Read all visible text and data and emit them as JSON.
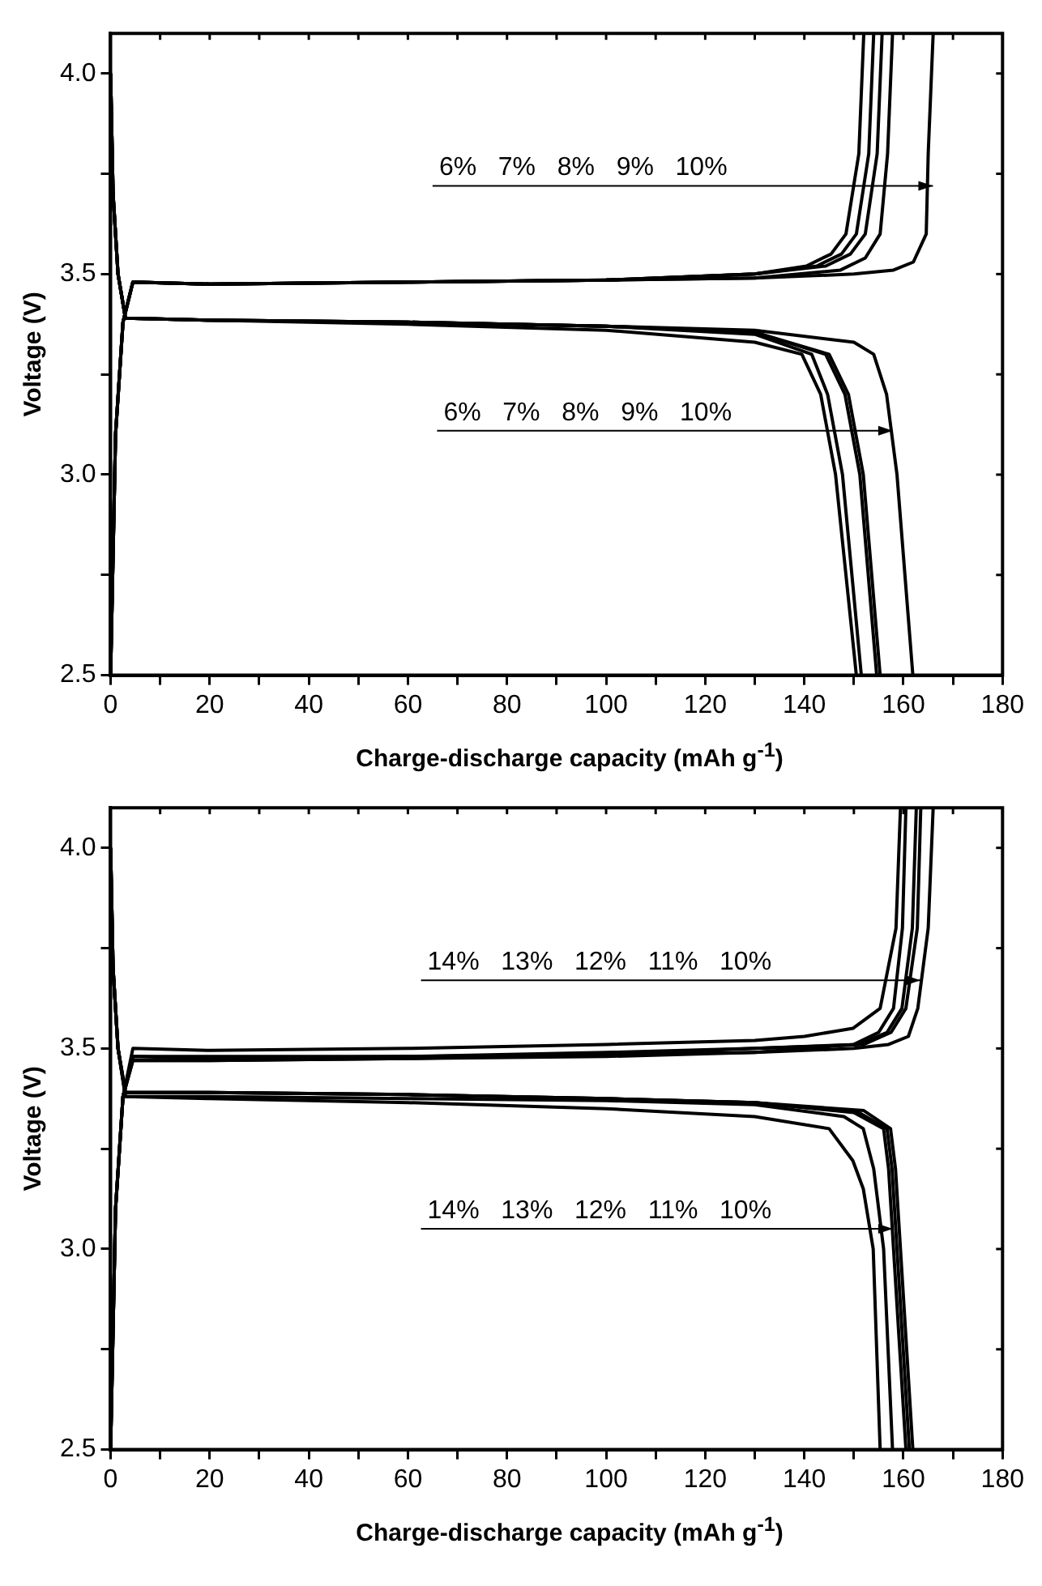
{
  "chart_data": [
    {
      "type": "line",
      "xlabel": "Charge-discharge capacity (mAh g$^{-1}$)",
      "ylabel": "Voltage (V)",
      "xlim": [
        0,
        180
      ],
      "ylim": [
        2.5,
        4.1
      ],
      "xticks": [
        0,
        {
          "value": 10,
          "label": null
        },
        20,
        {
          "value": 30,
          "label": null
        },
        40,
        {
          "value": 50,
          "label": null
        },
        60,
        {
          "value": 70,
          "label": null
        },
        80,
        {
          "value": 90,
          "label": null
        },
        100,
        {
          "value": 110,
          "label": null
        },
        120,
        {
          "value": 130,
          "label": null
        },
        140,
        {
          "value": 150,
          "label": null
        },
        160,
        {
          "value": 170,
          "label": null
        },
        180
      ],
      "yticks": [
        {
          "value": 2.5,
          "label": "2.5"
        },
        {
          "value": 2.75,
          "label": null
        },
        {
          "value": 3.0,
          "label": "3.0"
        },
        {
          "value": 3.25,
          "label": null
        },
        {
          "value": 3.5,
          "label": "3.5"
        },
        {
          "value": 3.75,
          "label": null
        },
        {
          "value": 4.0,
          "label": "4.0"
        }
      ],
      "grid": false,
      "legend": false,
      "marker": "none",
      "line_style": "solid",
      "annotations": [
        "6%   7%   8%   9%   10%",
        "6%   7%   8%   9%   10%"
      ],
      "series": [
        {
          "color": "#000000",
          "x": [
            0,
            1,
            2.5,
            4.5,
            20,
            60,
            100,
            130,
            140.4,
            145.4,
            148.4,
            151,
            152
          ],
          "values": [
            2.5,
            3.1,
            3.38,
            3.48,
            3.475,
            3.48,
            3.485,
            3.5,
            3.52,
            3.55,
            3.6,
            3.8,
            4.1
          ]
        },
        {
          "color": "#000000",
          "x": [
            0,
            1,
            2.5,
            4.5,
            20,
            60,
            100,
            130,
            142.5,
            147.5,
            150.5,
            153,
            154
          ],
          "values": [
            2.5,
            3.1,
            3.38,
            3.48,
            3.475,
            3.48,
            3.485,
            3.5,
            3.52,
            3.55,
            3.6,
            3.8,
            4.1
          ]
        },
        {
          "color": "#000000",
          "x": [
            0,
            1,
            2.5,
            4.5,
            20,
            60,
            100,
            130,
            144.3,
            149.3,
            152.3,
            154.7,
            155.7
          ],
          "values": [
            2.5,
            3.1,
            3.38,
            3.48,
            3.475,
            3.48,
            3.485,
            3.5,
            3.52,
            3.55,
            3.6,
            3.8,
            4.1
          ]
        },
        {
          "color": "#000000",
          "x": [
            0,
            1,
            2.5,
            4.5,
            20,
            60,
            100,
            130,
            147.3,
            152.3,
            155.3,
            156.8,
            157.8
          ],
          "values": [
            2.5,
            3.1,
            3.38,
            3.48,
            3.475,
            3.48,
            3.485,
            3.49,
            3.51,
            3.54,
            3.6,
            3.8,
            4.1
          ]
        },
        {
          "color": "#000000",
          "x": [
            0,
            1,
            2.5,
            4.5,
            20,
            60,
            100,
            130,
            150,
            158,
            162,
            164.6,
            165,
            166
          ],
          "values": [
            2.5,
            3.1,
            3.38,
            3.48,
            3.475,
            3.48,
            3.485,
            3.49,
            3.5,
            3.51,
            3.53,
            3.6,
            3.8,
            4.1
          ]
        },
        {
          "color": "#000000",
          "x": [
            0,
            0.5,
            1.5,
            3,
            20,
            60,
            100,
            130,
            139.5,
            143.3,
            146.3,
            150.5
          ],
          "values": [
            4.0,
            3.7,
            3.5,
            3.39,
            3.385,
            3.375,
            3.36,
            3.33,
            3.3,
            3.2,
            3.0,
            2.5
          ]
        },
        {
          "color": "#000000",
          "x": [
            0,
            0.5,
            1.5,
            3,
            20,
            60,
            100,
            130,
            141.5,
            144.7,
            147.7,
            151.5
          ],
          "values": [
            4.0,
            3.7,
            3.5,
            3.39,
            3.385,
            3.38,
            3.37,
            3.35,
            3.3,
            3.2,
            3.0,
            2.5
          ]
        },
        {
          "color": "#000000",
          "x": [
            0,
            0.5,
            1.5,
            3,
            20,
            60,
            100,
            130,
            144.3,
            148.2,
            151.2,
            154.6
          ],
          "values": [
            4.0,
            3.7,
            3.5,
            3.39,
            3.385,
            3.38,
            3.37,
            3.355,
            3.3,
            3.2,
            3.0,
            2.5
          ]
        },
        {
          "color": "#000000",
          "x": [
            0,
            0.5,
            1.5,
            3,
            20,
            60,
            100,
            130,
            145,
            148.9,
            151.9,
            155.3
          ],
          "values": [
            4.0,
            3.7,
            3.5,
            3.39,
            3.385,
            3.38,
            3.37,
            3.355,
            3.3,
            3.2,
            3.0,
            2.5
          ]
        },
        {
          "color": "#000000",
          "x": [
            0,
            0.5,
            1.5,
            3,
            20,
            60,
            100,
            130,
            150,
            154,
            156.6,
            158.7,
            161.9
          ],
          "values": [
            4.0,
            3.7,
            3.5,
            3.39,
            3.385,
            3.38,
            3.37,
            3.36,
            3.33,
            3.3,
            3.2,
            3.0,
            2.5
          ]
        }
      ]
    },
    {
      "type": "line",
      "xlabel": "Charge-discharge capacity (mAh g$^{-1}$)",
      "ylabel": "Voltage (V)",
      "xlim": [
        0,
        180
      ],
      "ylim": [
        2.5,
        4.1
      ],
      "xticks": [
        0,
        {
          "value": 10,
          "label": null
        },
        20,
        {
          "value": 30,
          "label": null
        },
        40,
        {
          "value": 50,
          "label": null
        },
        60,
        {
          "value": 70,
          "label": null
        },
        80,
        {
          "value": 90,
          "label": null
        },
        100,
        {
          "value": 110,
          "label": null
        },
        120,
        {
          "value": 130,
          "label": null
        },
        140,
        {
          "value": 150,
          "label": null
        },
        160,
        {
          "value": 170,
          "label": null
        },
        180
      ],
      "yticks": [
        {
          "value": 2.5,
          "label": "2.5"
        },
        {
          "value": 2.75,
          "label": null
        },
        {
          "value": 3.0,
          "label": "3.0"
        },
        {
          "value": 3.25,
          "label": null
        },
        {
          "value": 3.5,
          "label": "3.5"
        },
        {
          "value": 3.75,
          "label": null
        },
        {
          "value": 4.0,
          "label": "4.0"
        }
      ],
      "grid": false,
      "legend": false,
      "marker": "none",
      "line_style": "solid",
      "annotations": [
        "14%   13%   12%   11%   10%",
        "14%   13%   12%   11%   10%"
      ],
      "series": [
        {
          "color": "#000000",
          "x": [
            0,
            1,
            2.5,
            4.5,
            20,
            60,
            100,
            130,
            140,
            149.8,
            155.3,
            158.5,
            159.4
          ],
          "values": [
            2.5,
            3.1,
            3.38,
            3.5,
            3.495,
            3.5,
            3.51,
            3.52,
            3.53,
            3.55,
            3.6,
            3.8,
            4.1
          ]
        },
        {
          "color": "#000000",
          "x": [
            0,
            1,
            2.5,
            4.5,
            20,
            60,
            100,
            130,
            150,
            155,
            158,
            159.8,
            160.5
          ],
          "values": [
            2.5,
            3.1,
            3.38,
            3.47,
            3.47,
            3.475,
            3.485,
            3.49,
            3.51,
            3.54,
            3.6,
            3.8,
            4.1
          ]
        },
        {
          "color": "#000000",
          "x": [
            0,
            1,
            2.5,
            4.5,
            20,
            60,
            100,
            130,
            151,
            156.7,
            159.7,
            161.8,
            162.6
          ],
          "values": [
            2.5,
            3.1,
            3.38,
            3.48,
            3.48,
            3.48,
            3.49,
            3.5,
            3.51,
            3.54,
            3.6,
            3.8,
            4.1
          ]
        },
        {
          "color": "#000000",
          "x": [
            0,
            1,
            2.5,
            4.5,
            20,
            60,
            100,
            130,
            152,
            157.5,
            160.5,
            162.8,
            163.5
          ],
          "values": [
            2.5,
            3.1,
            3.38,
            3.48,
            3.475,
            3.48,
            3.485,
            3.5,
            3.51,
            3.54,
            3.6,
            3.8,
            4.1
          ]
        },
        {
          "color": "#000000",
          "x": [
            0,
            1,
            2.5,
            4.5,
            20,
            60,
            100,
            130,
            150,
            157,
            161,
            162.9,
            165,
            166
          ],
          "values": [
            2.5,
            3.1,
            3.38,
            3.47,
            3.47,
            3.475,
            3.48,
            3.49,
            3.5,
            3.51,
            3.53,
            3.6,
            3.8,
            4.1
          ]
        },
        {
          "color": "#000000",
          "x": [
            0,
            0.5,
            1.5,
            3,
            20,
            60,
            100,
            130,
            145,
            149.8,
            151.9,
            153.9,
            155.3
          ],
          "values": [
            4.0,
            3.7,
            3.5,
            3.38,
            3.375,
            3.365,
            3.35,
            3.33,
            3.3,
            3.22,
            3.15,
            3.0,
            2.5
          ]
        },
        {
          "color": "#000000",
          "x": [
            0,
            0.5,
            1.5,
            3,
            20,
            60,
            100,
            130,
            148,
            151.9,
            154,
            156,
            157.8
          ],
          "values": [
            4.0,
            3.7,
            3.5,
            3.38,
            3.38,
            3.375,
            3.37,
            3.36,
            3.33,
            3.3,
            3.2,
            3.0,
            2.5
          ]
        },
        {
          "color": "#000000",
          "x": [
            0,
            0.5,
            1.5,
            3,
            20,
            60,
            100,
            130,
            150,
            156,
            157,
            158,
            160.5
          ],
          "values": [
            4.0,
            3.7,
            3.5,
            3.39,
            3.39,
            3.385,
            3.375,
            3.365,
            3.34,
            3.3,
            3.2,
            3.0,
            2.5
          ]
        },
        {
          "color": "#000000",
          "x": [
            0,
            0.5,
            1.5,
            3,
            20,
            60,
            100,
            130,
            151,
            156.7,
            157.7,
            158.7,
            161.2
          ],
          "values": [
            4.0,
            3.7,
            3.5,
            3.39,
            3.39,
            3.385,
            3.375,
            3.365,
            3.34,
            3.3,
            3.2,
            3.0,
            2.5
          ]
        },
        {
          "color": "#000000",
          "x": [
            0,
            0.5,
            1.5,
            3,
            20,
            60,
            100,
            130,
            152,
            157.4,
            158.4,
            159.4,
            161.9
          ],
          "values": [
            4.0,
            3.7,
            3.5,
            3.39,
            3.39,
            3.385,
            3.375,
            3.365,
            3.345,
            3.3,
            3.2,
            3.0,
            2.5
          ]
        }
      ]
    }
  ]
}
